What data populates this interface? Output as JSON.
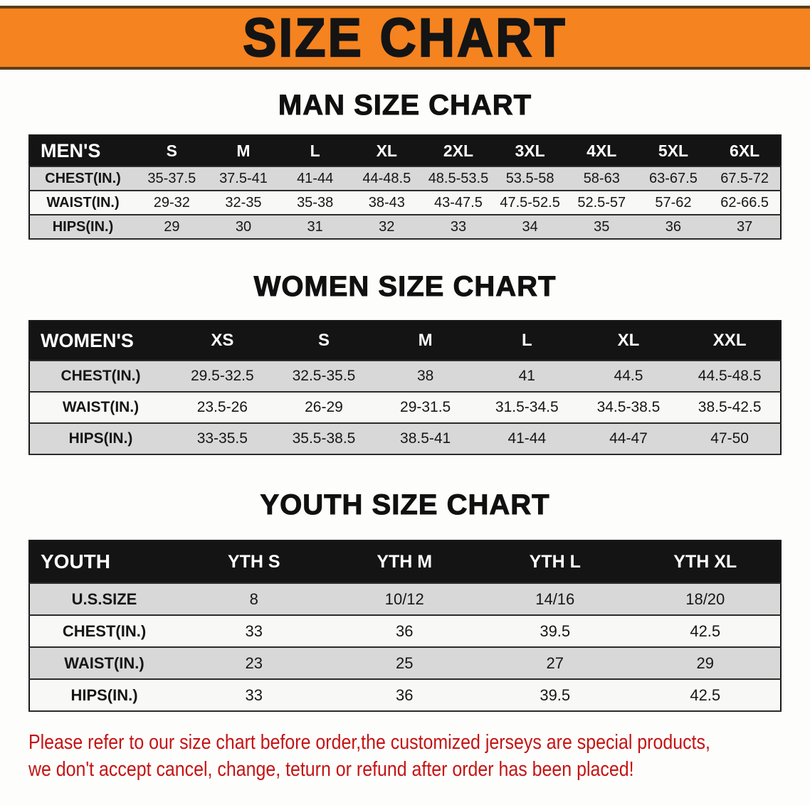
{
  "banner": {
    "title": "SIZE CHART"
  },
  "colors": {
    "banner_orange": "#F5831F",
    "header_black": "#141414",
    "row_gray": "#D8D8D8",
    "disclaimer_red": "#C41414"
  },
  "sections": {
    "men": {
      "heading": "MAN SIZE CHART",
      "table": {
        "header": [
          "MEN'S",
          "S",
          "M",
          "L",
          "XL",
          "2XL",
          "3XL",
          "4XL",
          "5XL",
          "6XL"
        ],
        "rows": [
          [
            "CHEST(IN.)",
            "35-37.5",
            "37.5-41",
            "41-44",
            "44-48.5",
            "48.5-53.5",
            "53.5-58",
            "58-63",
            "63-67.5",
            "67.5-72"
          ],
          [
            "WAIST(IN.)",
            "29-32",
            "32-35",
            "35-38",
            "38-43",
            "43-47.5",
            "47.5-52.5",
            "52.5-57",
            "57-62",
            "62-66.5"
          ],
          [
            "HIPS(IN.)",
            "29",
            "30",
            "31",
            "32",
            "33",
            "34",
            "35",
            "36",
            "37"
          ]
        ]
      }
    },
    "women": {
      "heading": "WOMEN SIZE CHART",
      "table": {
        "header": [
          "WOMEN'S",
          "XS",
          "S",
          "M",
          "L",
          "XL",
          "XXL"
        ],
        "rows": [
          [
            "CHEST(IN.)",
            "29.5-32.5",
            "32.5-35.5",
            "38",
            "41",
            "44.5",
            "44.5-48.5"
          ],
          [
            "WAIST(IN.)",
            "23.5-26",
            "26-29",
            "29-31.5",
            "31.5-34.5",
            "34.5-38.5",
            "38.5-42.5"
          ],
          [
            "HIPS(IN.)",
            "33-35.5",
            "35.5-38.5",
            "38.5-41",
            "41-44",
            "44-47",
            "47-50"
          ]
        ]
      }
    },
    "youth": {
      "heading": "YOUTH SIZE CHART",
      "table": {
        "header": [
          "YOUTH",
          "YTH S",
          "YTH M",
          "YTH L",
          "YTH XL"
        ],
        "rows": [
          [
            "U.S.SIZE",
            "8",
            "10/12",
            "14/16",
            "18/20"
          ],
          [
            "CHEST(IN.)",
            "33",
            "36",
            "39.5",
            "42.5"
          ],
          [
            "WAIST(IN.)",
            "23",
            "25",
            "27",
            "29"
          ],
          [
            "HIPS(IN.)",
            "33",
            "36",
            "39.5",
            "42.5"
          ]
        ]
      }
    }
  },
  "disclaimer": {
    "line1": "Please refer to our size chart before order,the customized jerseys are special products,",
    "line2": "we don't accept cancel, change, teturn or refund after order has been placed!"
  }
}
